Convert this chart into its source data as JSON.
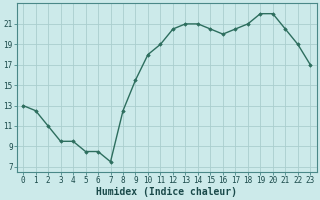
{
  "x": [
    0,
    1,
    2,
    3,
    4,
    5,
    6,
    7,
    8,
    9,
    10,
    11,
    12,
    13,
    14,
    15,
    16,
    17,
    18,
    19,
    20,
    21,
    22,
    23
  ],
  "y": [
    13,
    12.5,
    11,
    9.5,
    9.5,
    8.5,
    8.5,
    7.5,
    12.5,
    15.5,
    18,
    19,
    20.5,
    21,
    21,
    20.5,
    20,
    20.5,
    21,
    22,
    22,
    20.5,
    19,
    17
  ],
  "line_color": "#2d6e5e",
  "marker": "D",
  "marker_size": 1.8,
  "bg_color": "#cceaea",
  "grid_color": "#aacece",
  "xlabel": "Humidex (Indice chaleur)",
  "ylim": [
    6.5,
    23
  ],
  "xlim": [
    -0.5,
    23.5
  ],
  "yticks": [
    7,
    9,
    11,
    13,
    15,
    17,
    19,
    21
  ],
  "xticks": [
    0,
    1,
    2,
    3,
    4,
    5,
    6,
    7,
    8,
    9,
    10,
    11,
    12,
    13,
    14,
    15,
    16,
    17,
    18,
    19,
    20,
    21,
    22,
    23
  ],
  "tick_fontsize": 5.5,
  "label_fontsize": 7,
  "line_width": 1.0
}
